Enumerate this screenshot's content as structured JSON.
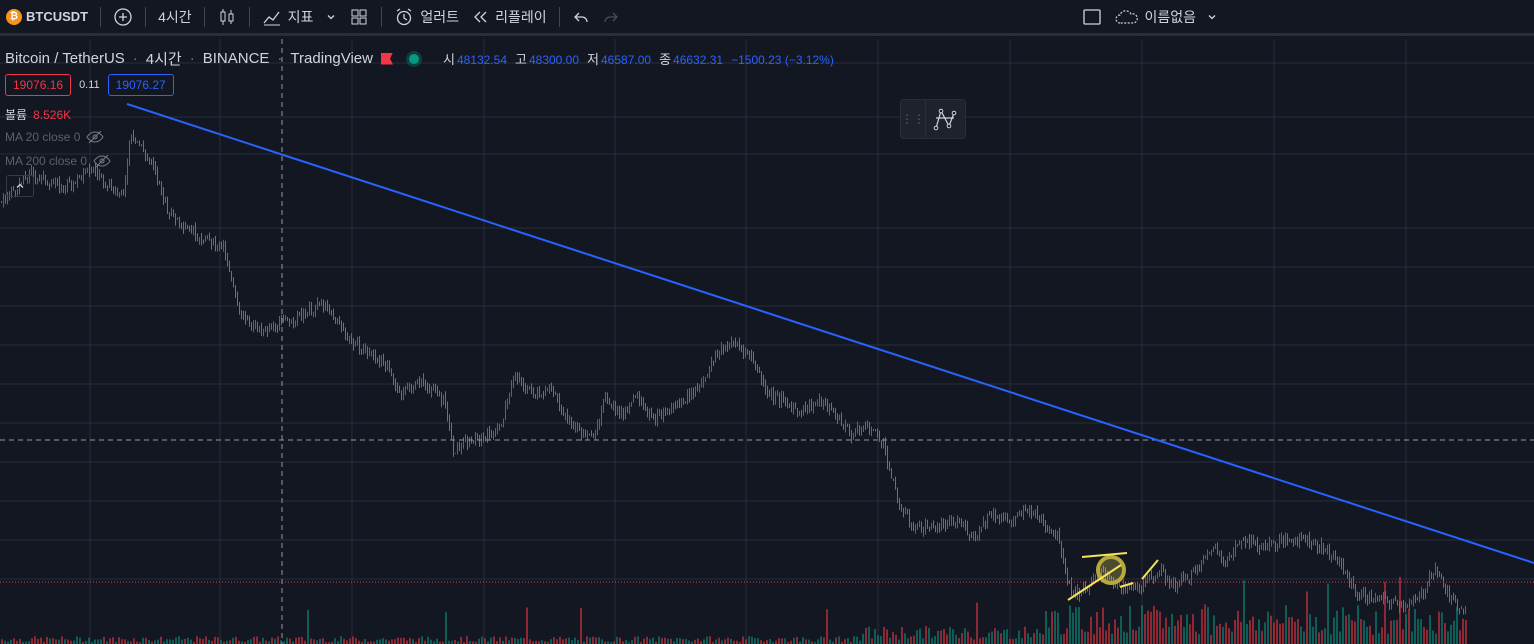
{
  "toolbar": {
    "symbol": "BTCUSDT",
    "symbol_icon": "bitcoin-icon",
    "interval": "4시간",
    "indicators_label": "지표",
    "alert_label": "얼러트",
    "replay_label": "리플레이",
    "layout_name": "이름없음"
  },
  "legend": {
    "title": "Bitcoin / TetherUS",
    "interval": "4시간",
    "exchange": "BINANCE",
    "source": "TradingView",
    "open_label": "시",
    "open": "48132.54",
    "high_label": "고",
    "high": "48300.00",
    "low_label": "저",
    "low": "46587.00",
    "close_label": "종",
    "close": "46632.31",
    "change": "−1500.23 (−3.12%)"
  },
  "prices": {
    "sell": "19076.16",
    "spread": "0.11",
    "buy": "19076.27"
  },
  "indicators": [
    {
      "label": "볼륨",
      "value": "8.526K"
    },
    {
      "label": "MA 20 close 0",
      "value": ""
    },
    {
      "label": "MA 200 close 0",
      "value": ""
    }
  ],
  "colors": {
    "background": "#131722",
    "grid": "#2a2e39",
    "up": "#2962ff",
    "down": "#f23645",
    "trendline": "#2962ff",
    "annotation": "#f7e35a"
  },
  "chart_data": {
    "type": "candlestick",
    "symbol": "BTCUSDT",
    "interval": "4시간",
    "price_trend": [
      [
        0,
        0.79
      ],
      [
        0.02,
        0.85
      ],
      [
        0.04,
        0.82
      ],
      [
        0.06,
        0.86
      ],
      [
        0.08,
        0.8
      ],
      [
        0.085,
        0.94
      ],
      [
        0.1,
        0.86
      ],
      [
        0.11,
        0.77
      ],
      [
        0.13,
        0.72
      ],
      [
        0.145,
        0.7
      ],
      [
        0.155,
        0.57
      ],
      [
        0.17,
        0.52
      ],
      [
        0.19,
        0.55
      ],
      [
        0.21,
        0.58
      ],
      [
        0.23,
        0.5
      ],
      [
        0.25,
        0.46
      ],
      [
        0.26,
        0.4
      ],
      [
        0.275,
        0.42
      ],
      [
        0.29,
        0.38
      ],
      [
        0.295,
        0.28
      ],
      [
        0.31,
        0.3
      ],
      [
        0.325,
        0.32
      ],
      [
        0.335,
        0.43
      ],
      [
        0.345,
        0.4
      ],
      [
        0.36,
        0.4
      ],
      [
        0.37,
        0.34
      ],
      [
        0.385,
        0.3
      ],
      [
        0.395,
        0.39
      ],
      [
        0.405,
        0.35
      ],
      [
        0.415,
        0.4
      ],
      [
        0.425,
        0.34
      ],
      [
        0.44,
        0.37
      ],
      [
        0.455,
        0.41
      ],
      [
        0.47,
        0.49
      ],
      [
        0.48,
        0.5
      ],
      [
        0.49,
        0.47
      ],
      [
        0.5,
        0.4
      ],
      [
        0.51,
        0.38
      ],
      [
        0.52,
        0.36
      ],
      [
        0.535,
        0.38
      ],
      [
        0.545,
        0.35
      ],
      [
        0.555,
        0.31
      ],
      [
        0.565,
        0.33
      ],
      [
        0.575,
        0.3
      ],
      [
        0.585,
        0.17
      ],
      [
        0.595,
        0.12
      ],
      [
        0.61,
        0.12
      ],
      [
        0.625,
        0.13
      ],
      [
        0.635,
        0.1
      ],
      [
        0.645,
        0.15
      ],
      [
        0.66,
        0.13
      ],
      [
        0.67,
        0.16
      ],
      [
        0.68,
        0.13
      ],
      [
        0.69,
        0.1
      ],
      [
        0.695,
        0.02
      ],
      [
        0.7,
        -0.02
      ],
      [
        0.71,
        0.0
      ],
      [
        0.72,
        0.03
      ],
      [
        0.73,
        -0.01
      ],
      [
        0.745,
        0.0
      ],
      [
        0.755,
        0.03
      ],
      [
        0.765,
        0.0
      ],
      [
        0.78,
        0.03
      ],
      [
        0.79,
        0.08
      ],
      [
        0.8,
        0.05
      ],
      [
        0.81,
        0.1
      ],
      [
        0.82,
        0.08
      ],
      [
        0.835,
        0.09
      ],
      [
        0.85,
        0.1
      ],
      [
        0.86,
        0.08
      ],
      [
        0.87,
        0.06
      ],
      [
        0.885,
        -0.02
      ],
      [
        0.9,
        -0.03
      ],
      [
        0.915,
        -0.04
      ],
      [
        0.925,
        -0.03
      ],
      [
        0.935,
        0.04
      ],
      [
        0.945,
        -0.03
      ],
      [
        0.955,
        -0.05
      ]
    ],
    "annotations": [
      "downtrend-line",
      "horizontal-dashed-line",
      "dotted-price-line",
      "circle-highlight",
      "arrow-annotations"
    ]
  }
}
